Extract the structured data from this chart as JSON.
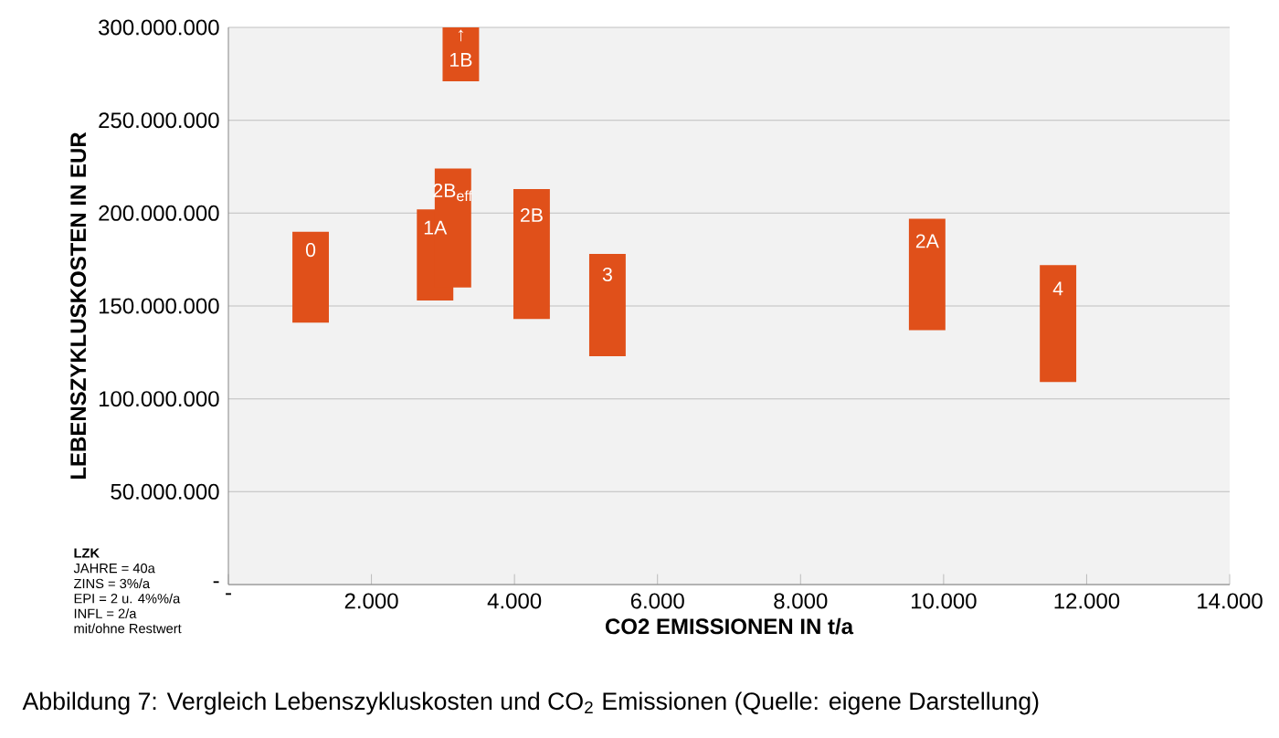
{
  "chart_data": {
    "type": "bar",
    "xlabel": "CO2 EMISSIONEN IN  t/a",
    "ylabel": "LEBENSZYKLUSKOSTEN IN EUR",
    "series": [
      {
        "name": "0",
        "color": "#e0501a",
        "x": [
          1150
        ],
        "base": [
          141000000
        ],
        "values": [
          49000000
        ]
      },
      {
        "name": "1A",
        "color": "#e0501a",
        "x": [
          2890
        ],
        "base": [
          153000000
        ],
        "values": [
          49000000
        ]
      },
      {
        "name": "2B$_{eff}$",
        "color": "#e0501a",
        "x": [
          3140
        ],
        "base": [
          160000000
        ],
        "values": [
          64000000
        ]
      },
      {
        "name": "1B",
        "color": "#e0501a",
        "x": [
          3250
        ],
        "base": [
          271000000
        ],
        "values": [
          29000000
        ]
      },
      {
        "name": "2B",
        "color": "#e0501a",
        "x": [
          4240
        ],
        "base": [
          143000000
        ],
        "values": [
          70000000
        ]
      },
      {
        "name": "3",
        "color": "#e0501a",
        "x": [
          5300
        ],
        "base": [
          123000000
        ],
        "values": [
          55000000
        ]
      },
      {
        "name": "2A",
        "color": "#e0501a",
        "x": [
          9770
        ],
        "base": [
          137000000
        ],
        "values": [
          60000000
        ]
      },
      {
        "name": "4",
        "color": "#e0501a",
        "x": [
          11600
        ],
        "base": [
          109000000
        ],
        "values": [
          63000000
        ]
      }
    ],
    "xlim": [
      0,
      14000
    ],
    "xticks": [
      {
        "value": 0,
        "label": "-"
      },
      {
        "value": 2000,
        "label": "2.000"
      },
      {
        "value": 4000,
        "label": "4.000"
      },
      {
        "value": 6000,
        "label": "6.000"
      },
      {
        "value": 8000,
        "label": "8.000"
      },
      {
        "value": 10000,
        "label": "10.000"
      },
      {
        "value": 12000,
        "label": "12.000"
      },
      {
        "value": 14000,
        "label": "14.000"
      }
    ],
    "ylim": [
      0,
      300000000
    ],
    "yticks": [
      {
        "value": 0,
        "label": "-"
      },
      {
        "value": 50000000,
        "label": "50.000.000"
      },
      {
        "value": 100000000,
        "label": "100.000.000"
      },
      {
        "value": 150000000,
        "label": "150.000.000"
      },
      {
        "value": 200000000,
        "label": "200.000.000"
      },
      {
        "value": 250000000,
        "label": "250.000.000"
      },
      {
        "value": 300000000,
        "label": "300.000.000"
      }
    ],
    "grid": "y",
    "annotations": [
      "↑",
      "LZK",
      "JAHRE = 40a",
      "ZINS = 3%/a",
      "EPI = 2 u. 4%%/a",
      "INFL = 2/a",
      "mit/ohne Restwert",
      "Abbildung 7: Vergleich Lebenszykluskosten und CO$_{2}$ Emissionen (Quelle: eigene Darstellung)"
    ]
  }
}
